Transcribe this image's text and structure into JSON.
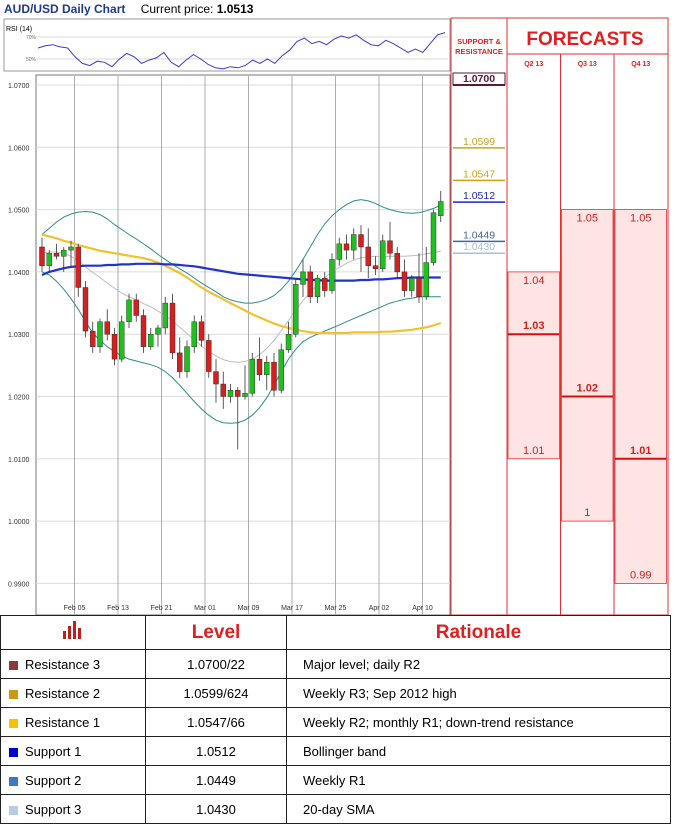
{
  "header": {
    "title": "AUD/USD Daily Chart",
    "price_label": "Current price:",
    "price": "1.0513"
  },
  "rsi": {
    "label": "RSI (14)",
    "tick_high": "70%",
    "tick_low": "50%"
  },
  "support_resistance_header": "SUPPORT & RESISTANCE",
  "forecasts_header": "FORECASTS",
  "chart_data": {
    "type": "candlestick",
    "title": "AUD/USD Daily Chart",
    "ylim": [
      0.985,
      1.07
    ],
    "y_ticks": [
      "1.0700",
      "1.0600",
      "1.0500",
      "1.0400",
      "1.0300",
      "1.0200",
      "1.0100",
      "1.0000",
      "0.9900"
    ],
    "y_tick_values": [
      1.07,
      1.06,
      1.05,
      1.04,
      1.03,
      1.02,
      1.01,
      1.0,
      0.99
    ],
    "x_ticks": [
      "Feb 05",
      "Feb 13",
      "Feb 21",
      "Mar 01",
      "Mar 09",
      "Mar 17",
      "Mar 25",
      "Apr 02",
      "Apr 10"
    ],
    "x_tick_index": [
      2,
      8,
      14,
      20,
      26,
      32,
      38,
      44,
      50
    ],
    "candles": [
      {
        "o": 1.044,
        "h": 1.0455,
        "l": 1.04,
        "c": 1.041
      },
      {
        "o": 1.041,
        "h": 1.0435,
        "l": 1.04,
        "c": 1.043
      },
      {
        "o": 1.043,
        "h": 1.0445,
        "l": 1.042,
        "c": 1.0425
      },
      {
        "o": 1.0425,
        "h": 1.044,
        "l": 1.04,
        "c": 1.0435
      },
      {
        "o": 1.0435,
        "h": 1.045,
        "l": 1.041,
        "c": 1.044
      },
      {
        "o": 1.044,
        "h": 1.0445,
        "l": 1.036,
        "c": 1.0375
      },
      {
        "o": 1.0375,
        "h": 1.0385,
        "l": 1.0295,
        "c": 1.0305
      },
      {
        "o": 1.0305,
        "h": 1.032,
        "l": 1.027,
        "c": 1.028
      },
      {
        "o": 1.028,
        "h": 1.0325,
        "l": 1.027,
        "c": 1.032
      },
      {
        "o": 1.032,
        "h": 1.034,
        "l": 1.029,
        "c": 1.03
      },
      {
        "o": 1.03,
        "h": 1.031,
        "l": 1.025,
        "c": 1.026
      },
      {
        "o": 1.026,
        "h": 1.033,
        "l": 1.0255,
        "c": 1.032
      },
      {
        "o": 1.032,
        "h": 1.0365,
        "l": 1.031,
        "c": 1.0355
      },
      {
        "o": 1.0355,
        "h": 1.0365,
        "l": 1.032,
        "c": 1.033
      },
      {
        "o": 1.033,
        "h": 1.034,
        "l": 1.027,
        "c": 1.028
      },
      {
        "o": 1.028,
        "h": 1.031,
        "l": 1.0275,
        "c": 1.03
      },
      {
        "o": 1.03,
        "h": 1.0315,
        "l": 1.028,
        "c": 1.031
      },
      {
        "o": 1.031,
        "h": 1.036,
        "l": 1.03,
        "c": 1.035
      },
      {
        "o": 1.035,
        "h": 1.0365,
        "l": 1.026,
        "c": 1.027
      },
      {
        "o": 1.027,
        "h": 1.0295,
        "l": 1.023,
        "c": 1.024
      },
      {
        "o": 1.024,
        "h": 1.029,
        "l": 1.023,
        "c": 1.028
      },
      {
        "o": 1.028,
        "h": 1.033,
        "l": 1.027,
        "c": 1.032
      },
      {
        "o": 1.032,
        "h": 1.033,
        "l": 1.028,
        "c": 1.029
      },
      {
        "o": 1.029,
        "h": 1.03,
        "l": 1.023,
        "c": 1.024
      },
      {
        "o": 1.024,
        "h": 1.026,
        "l": 1.019,
        "c": 1.022
      },
      {
        "o": 1.022,
        "h": 1.024,
        "l": 1.018,
        "c": 1.02
      },
      {
        "o": 1.02,
        "h": 1.022,
        "l": 1.019,
        "c": 1.021
      },
      {
        "o": 1.021,
        "h": 1.0215,
        "l": 1.0115,
        "c": 1.02
      },
      {
        "o": 1.02,
        "h": 1.025,
        "l": 1.0195,
        "c": 1.0205
      },
      {
        "o": 1.0205,
        "h": 1.027,
        "l": 1.02,
        "c": 1.026
      },
      {
        "o": 1.026,
        "h": 1.0295,
        "l": 1.0225,
        "c": 1.0235
      },
      {
        "o": 1.0235,
        "h": 1.0265,
        "l": 1.021,
        "c": 1.0255
      },
      {
        "o": 1.0255,
        "h": 1.027,
        "l": 1.02,
        "c": 1.021
      },
      {
        "o": 1.021,
        "h": 1.0285,
        "l": 1.0205,
        "c": 1.0275
      },
      {
        "o": 1.0275,
        "h": 1.032,
        "l": 1.027,
        "c": 1.03
      },
      {
        "o": 1.03,
        "h": 1.039,
        "l": 1.0295,
        "c": 1.038
      },
      {
        "o": 1.038,
        "h": 1.042,
        "l": 1.036,
        "c": 1.04
      },
      {
        "o": 1.04,
        "h": 1.041,
        "l": 1.035,
        "c": 1.036
      },
      {
        "o": 1.036,
        "h": 1.0395,
        "l": 1.035,
        "c": 1.039
      },
      {
        "o": 1.039,
        "h": 1.04,
        "l": 1.036,
        "c": 1.037
      },
      {
        "o": 1.037,
        "h": 1.043,
        "l": 1.0365,
        "c": 1.042
      },
      {
        "o": 1.042,
        "h": 1.0455,
        "l": 1.041,
        "c": 1.0445
      },
      {
        "o": 1.0445,
        "h": 1.046,
        "l": 1.042,
        "c": 1.0435
      },
      {
        "o": 1.0435,
        "h": 1.047,
        "l": 1.042,
        "c": 1.046
      },
      {
        "o": 1.046,
        "h": 1.0475,
        "l": 1.04,
        "c": 1.044
      },
      {
        "o": 1.044,
        "h": 1.047,
        "l": 1.039,
        "c": 1.041
      },
      {
        "o": 1.041,
        "h": 1.0425,
        "l": 1.0395,
        "c": 1.0405
      },
      {
        "o": 1.0405,
        "h": 1.046,
        "l": 1.04,
        "c": 1.045
      },
      {
        "o": 1.045,
        "h": 1.048,
        "l": 1.042,
        "c": 1.043
      },
      {
        "o": 1.043,
        "h": 1.044,
        "l": 1.039,
        "c": 1.04
      },
      {
        "o": 1.04,
        "h": 1.042,
        "l": 1.036,
        "c": 1.037
      },
      {
        "o": 1.037,
        "h": 1.0395,
        "l": 1.036,
        "c": 1.039
      },
      {
        "o": 1.039,
        "h": 1.043,
        "l": 1.035,
        "c": 1.036
      },
      {
        "o": 1.036,
        "h": 1.044,
        "l": 1.0355,
        "c": 1.0415
      },
      {
        "o": 1.0415,
        "h": 1.05,
        "l": 1.041,
        "c": 1.0495
      },
      {
        "o": 1.049,
        "h": 1.053,
        "l": 1.048,
        "c": 1.0513
      }
    ],
    "lines": {
      "ma200": {
        "color": "#2233cc",
        "values": [
          1.0395,
          1.04,
          1.0403,
          1.0406,
          1.0408,
          1.0409,
          1.041,
          1.041,
          1.041,
          1.0411,
          1.0411,
          1.0412,
          1.0412,
          1.0413,
          1.0413,
          1.0413,
          1.0413,
          1.0412,
          1.0412,
          1.0411,
          1.041,
          1.0409,
          1.0407,
          1.0405,
          1.0403,
          1.0401,
          1.0399,
          1.0397,
          1.0396,
          1.0395,
          1.0394,
          1.0393,
          1.0392,
          1.0391,
          1.039,
          1.0389,
          1.0388,
          1.0387,
          1.0387,
          1.0386,
          1.0386,
          1.0386,
          1.0386,
          1.0386,
          1.0387,
          1.0387,
          1.0388,
          1.0388,
          1.0389,
          1.039,
          1.039,
          1.0391,
          1.0391,
          1.0391,
          1.0391,
          1.0391
        ]
      },
      "ma100": {
        "color": "#f2c12e",
        "values": [
          1.046,
          1.0457,
          1.0454,
          1.045,
          1.0447,
          1.0443,
          1.044,
          1.0437,
          1.0434,
          1.0432,
          1.043,
          1.0428,
          1.0426,
          1.0424,
          1.0422,
          1.0419,
          1.0415,
          1.041,
          1.0404,
          1.0398,
          1.0391,
          1.0383,
          1.0375,
          1.0368,
          1.0362,
          1.0356,
          1.035,
          1.0344,
          1.0338,
          1.0332,
          1.0327,
          1.0322,
          1.0317,
          1.0313,
          1.031,
          1.0307,
          1.0305,
          1.0303,
          1.0302,
          1.0302,
          1.0302,
          1.0302,
          1.0302,
          1.0303,
          1.0303,
          1.0303,
          1.0303,
          1.0304,
          1.0304,
          1.0305,
          1.0306,
          1.0307,
          1.0309,
          1.0311,
          1.0314,
          1.0318
        ]
      },
      "bb_upper": {
        "color": "#2e8b8b",
        "values": [
          1.046,
          1.047,
          1.048,
          1.0488,
          1.0493,
          1.0496,
          1.0497,
          1.0496,
          1.0492,
          1.0485,
          1.0476,
          1.0468,
          1.046,
          1.0453,
          1.0445,
          1.0437,
          1.0428,
          1.042,
          1.0412,
          1.0405,
          1.0398,
          1.039,
          1.0382,
          1.0375,
          1.0368,
          1.036,
          1.0355,
          1.0352,
          1.035,
          1.035,
          1.0352,
          1.0356,
          1.0362,
          1.0372,
          1.0385,
          1.0402,
          1.042,
          1.044,
          1.046,
          1.0477,
          1.049,
          1.05,
          1.0508,
          1.0514,
          1.0516,
          1.0514,
          1.051,
          1.0504,
          1.05,
          1.0497,
          1.0495,
          1.0494,
          1.0495,
          1.0498,
          1.0502,
          1.0507
        ]
      },
      "bb_lower": {
        "color": "#2e8b8b",
        "values": [
          1.04,
          1.0395,
          1.0385,
          1.0372,
          1.0357,
          1.034,
          1.032,
          1.0302,
          1.029,
          1.028,
          1.0272,
          1.0265,
          1.026,
          1.0257,
          1.0254,
          1.0251,
          1.0247,
          1.024,
          1.023,
          1.0218,
          1.0205,
          1.0192,
          1.018,
          1.017,
          1.0162,
          1.0158,
          1.0157,
          1.0158,
          1.0162,
          1.017,
          1.0182,
          1.0198,
          1.0218,
          1.024,
          1.026,
          1.0276,
          1.0288,
          1.0295,
          1.03,
          1.0305,
          1.031,
          1.0315,
          1.032,
          1.0325,
          1.033,
          1.0335,
          1.034,
          1.0345,
          1.035,
          1.0353,
          1.0356,
          1.0358,
          1.036,
          1.036,
          1.036,
          1.036
        ]
      },
      "bb_mid": {
        "color": "#bdbdbd",
        "values": [
          1.043,
          1.0432,
          1.0432,
          1.043,
          1.0425,
          1.0418,
          1.0408,
          1.0399,
          1.0391,
          1.0382,
          1.0374,
          1.0366,
          1.036,
          1.0355,
          1.0349,
          1.0344,
          1.0337,
          1.033,
          1.0321,
          1.0311,
          1.0301,
          1.0291,
          1.0281,
          1.0272,
          1.0265,
          1.0259,
          1.0256,
          1.0255,
          1.0256,
          1.026,
          1.0267,
          1.0277,
          1.029,
          1.0306,
          1.0322,
          1.0339,
          1.0354,
          1.0367,
          1.038,
          1.0391,
          1.04,
          1.0407,
          1.0414,
          1.0419,
          1.0423,
          1.0424,
          1.0425,
          1.0424,
          1.0425,
          1.0425,
          1.0425,
          1.0426,
          1.0427,
          1.0429,
          1.0431,
          1.0433
        ]
      }
    },
    "rsi_values": [
      60,
      62,
      63,
      61,
      60,
      52,
      46,
      44,
      48,
      47,
      43,
      50,
      55,
      52,
      46,
      49,
      51,
      56,
      47,
      43,
      49,
      54,
      50,
      45,
      42,
      41,
      43,
      42,
      44,
      49,
      46,
      50,
      46,
      53,
      58,
      66,
      69,
      64,
      66,
      63,
      68,
      71,
      69,
      72,
      67,
      63,
      62,
      67,
      64,
      60,
      56,
      59,
      56,
      64,
      72,
      74
    ],
    "support_resistance": [
      {
        "label": "1.0700",
        "value": 1.07,
        "color": "#5a1a3a",
        "bold": true,
        "boxed": true
      },
      {
        "label": "1.0599",
        "value": 1.0599,
        "color": "#c9a227"
      },
      {
        "label": "1.0547",
        "value": 1.0547,
        "color": "#d4a017"
      },
      {
        "label": "1.0512",
        "value": 1.0512,
        "color": "#1a2ab0"
      },
      {
        "label": "1.0449",
        "value": 1.0449,
        "color": "#3d6a9a"
      },
      {
        "label": "1.0430",
        "value": 1.043,
        "color": "#aac0d8"
      }
    ],
    "forecasts": [
      {
        "quarter": "Q2 13",
        "high": "1.04",
        "high_value": 1.04,
        "mid": "1.03",
        "mid_value": 1.03,
        "low": "1.01",
        "low_value": 1.01
      },
      {
        "quarter": "Q3 13",
        "high": "1.05",
        "high_value": 1.05,
        "mid": "1.02",
        "mid_value": 1.02,
        "low": "1",
        "low_value": 1.0
      },
      {
        "quarter": "Q4 13",
        "high": "1.05",
        "high_value": 1.05,
        "mid": "1.01",
        "mid_value": 1.01,
        "low": "0.99",
        "low_value": 0.99
      }
    ]
  },
  "table": {
    "headers": {
      "level": "Level",
      "rationale": "Rationale"
    },
    "rows": [
      {
        "name": "Resistance 3",
        "level": "1.0700/22",
        "rationale": "Major level;  daily R2",
        "color": "#8b3a3a"
      },
      {
        "name": "Resistance 2",
        "level": "1.0599/624",
        "rationale": "Weekly R3; Sep 2012 high",
        "color": "#c89a10"
      },
      {
        "name": "Resistance 1",
        "level": "1.0547/66",
        "rationale": "Weekly R2; monthly R1; down-trend resistance",
        "color": "#f5c400"
      },
      {
        "name": "Support 1",
        "level": "1.0512",
        "rationale": "Bollinger band",
        "color": "#0000cc"
      },
      {
        "name": "Support 2",
        "level": "1.0449",
        "rationale": "Weekly R1",
        "color": "#3b7bbf"
      },
      {
        "name": "Support 3",
        "level": "1.0430",
        "rationale": "20-day SMA",
        "color": "#b8cce4"
      }
    ]
  }
}
